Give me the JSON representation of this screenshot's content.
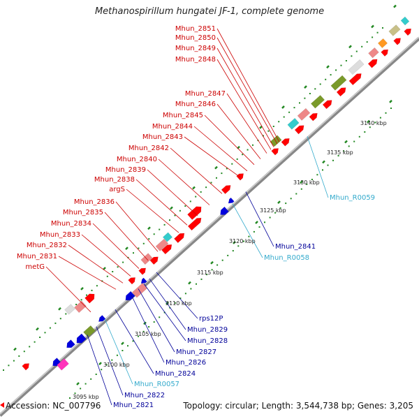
{
  "title": "Methanospirillum hungatei JF-1, complete genome",
  "footer": {
    "accession": "Accession: NC_007796",
    "topology": "Topology: circular; Length: 3,544,738 bp; Genes: 3,205"
  },
  "colors": {
    "red_gene": "#ff0000",
    "blue_gene": "#0000dd",
    "pink_gene": "#ee8888",
    "cyan_gene": "#33cccc",
    "olive_gene": "#7a9a2a",
    "magenta_gene": "#ff33bb",
    "label_red": "#cc0000",
    "label_blue": "#000099",
    "label_cyan": "#33aacc",
    "dots": "#228822"
  },
  "ticks": [
    "3095 kbp",
    "3100 kbp",
    "3105 kbp",
    "3110 kbp",
    "3115 kbp",
    "3120 kbp",
    "3125 kbp",
    "3130 kbp",
    "3135 kbp",
    "3140 kbp"
  ],
  "upper_labels": [
    "Mhun_2851",
    "Mhun_2850",
    "Mhun_2849",
    "Mhun_2848",
    "Mhun_2847",
    "Mhun_2846",
    "Mhun_2845",
    "Mhun_2844",
    "Mhun_2843",
    "Mhun_2842",
    "Mhun_2840",
    "Mhun_2839",
    "Mhun_2838",
    "argS",
    "Mhun_2836",
    "Mhun_2835",
    "Mhun_2834",
    "Mhun_2833",
    "Mhun_2832",
    "Mhun_2831",
    "metG"
  ],
  "lower_labels": [
    "Mhun_R0059",
    "Mhun_2841",
    "Mhun_R0058",
    "rps12P",
    "Mhun_2829",
    "Mhun_2828",
    "Mhun_2827",
    "Mhun_2826",
    "Mhun_2824",
    "Mhun_R0057",
    "Mhun_2822",
    "Mhun_2821"
  ]
}
